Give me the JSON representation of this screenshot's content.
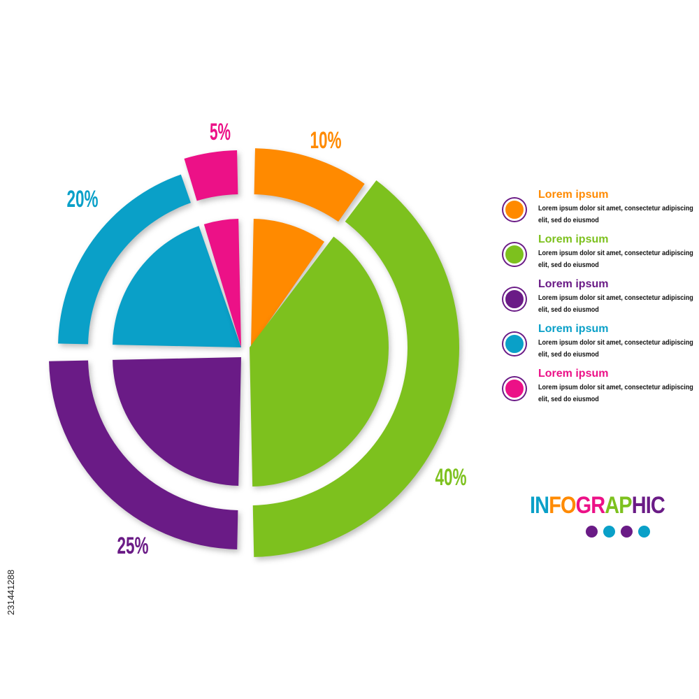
{
  "chart_data": {
    "type": "pie",
    "title": "",
    "slices": [
      {
        "label": "10%",
        "value": 10,
        "color": "#ff8a00"
      },
      {
        "label": "40%",
        "value": 40,
        "color": "#7dc11e"
      },
      {
        "label": "25%",
        "value": 25,
        "color": "#6a1b86"
      },
      {
        "label": "20%",
        "value": 20,
        "color": "#0aa0c8"
      },
      {
        "label": "5%",
        "value": 5,
        "color": "#ec1187"
      }
    ]
  },
  "legend": [
    {
      "title": "Lorem ipsum",
      "text": "Lorem ipsum dolor sit amet, consectetur adipiscing elit, sed do eiusmod",
      "color": "#ff8a00"
    },
    {
      "title": "Lorem ipsum",
      "text": "Lorem ipsum dolor sit amet, consectetur adipiscing elit, sed do eiusmod",
      "color": "#7dc11e"
    },
    {
      "title": "Lorem ipsum",
      "text": "Lorem ipsum dolor sit amet, consectetur adipiscing elit, sed do eiusmod",
      "color": "#6a1b86"
    },
    {
      "title": "Lorem ipsum",
      "text": "Lorem ipsum dolor sit amet, consectetur adipiscing elit, sed do eiusmod",
      "color": "#0aa0c8"
    },
    {
      "title": "Lorem ipsum",
      "text": "Lorem ipsum dolor sit amet, consectetur adipiscing elit, sed do eiusmod",
      "color": "#ec1187"
    }
  ],
  "brand": {
    "letters": [
      {
        "t": "IN",
        "color": "#0aa0c8"
      },
      {
        "t": "FO",
        "color": "#ff8a00"
      },
      {
        "t": "GR",
        "color": "#ec1187"
      },
      {
        "t": "AP",
        "color": "#7dc11e"
      },
      {
        "t": "HIC",
        "color": "#6a1b86"
      }
    ],
    "dots": [
      "#6a1b86",
      "#0aa0c8",
      "#6a1b86",
      "#0aa0c8"
    ]
  },
  "watermark_id": "231441288"
}
